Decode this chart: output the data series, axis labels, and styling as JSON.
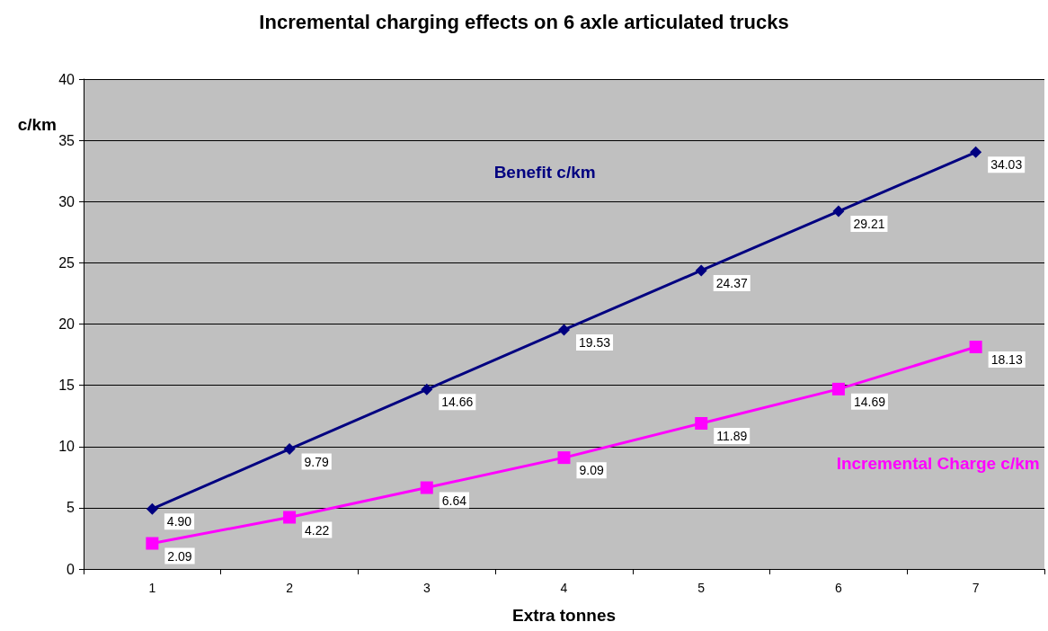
{
  "chart_data": {
    "type": "line",
    "title": "Incremental charging effects on 6 axle articulated trucks",
    "xlabel": "Extra tonnes",
    "ylabel": "c/km",
    "categories": [
      "1",
      "2",
      "3",
      "4",
      "5",
      "6",
      "7"
    ],
    "series": [
      {
        "name": "Benefit c/km",
        "color": "#000080",
        "marker": "diamond",
        "values": [
          4.9,
          9.79,
          14.66,
          19.53,
          24.37,
          29.21,
          34.03
        ],
        "value_labels": [
          "4.90",
          "9.79",
          "14.66",
          "19.53",
          "24.37",
          "29.21",
          "34.03"
        ]
      },
      {
        "name": "Incremental Charge c/km",
        "color": "#ff00ff",
        "marker": "square",
        "values": [
          2.09,
          4.22,
          6.64,
          9.09,
          11.89,
          14.69,
          18.13
        ],
        "value_labels": [
          "2.09",
          "4.22",
          "6.64",
          "9.09",
          "11.89",
          "14.69",
          "18.13"
        ]
      }
    ],
    "ylim": [
      0,
      40
    ],
    "yticks": [
      0,
      5,
      10,
      15,
      20,
      25,
      30,
      35,
      40
    ],
    "grid": "y",
    "legend": false,
    "line_style": "solid"
  }
}
